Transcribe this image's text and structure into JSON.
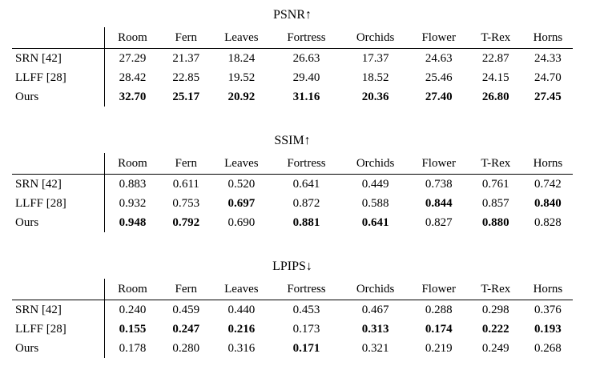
{
  "page": {
    "background": "#ffffff",
    "text_color": "#000000"
  },
  "tables": [
    {
      "title": "PSNR↑",
      "columns": [
        "Room",
        "Fern",
        "Leaves",
        "Fortress",
        "Orchids",
        "Flower",
        "T-Rex",
        "Horns"
      ],
      "rows": [
        {
          "method": "SRN",
          "cite": "[42]",
          "values": [
            "27.29",
            "21.37",
            "18.24",
            "26.63",
            "17.37",
            "24.63",
            "22.87",
            "24.33"
          ],
          "bold": [
            false,
            false,
            false,
            false,
            false,
            false,
            false,
            false
          ]
        },
        {
          "method": "LLFF",
          "cite": "[28]",
          "values": [
            "28.42",
            "22.85",
            "19.52",
            "29.40",
            "18.52",
            "25.46",
            "24.15",
            "24.70"
          ],
          "bold": [
            false,
            false,
            false,
            false,
            false,
            false,
            false,
            false
          ]
        },
        {
          "method": "Ours",
          "cite": "",
          "values": [
            "32.70",
            "25.17",
            "20.92",
            "31.16",
            "20.36",
            "27.40",
            "26.80",
            "27.45"
          ],
          "bold": [
            true,
            true,
            true,
            true,
            true,
            true,
            true,
            true
          ]
        }
      ]
    },
    {
      "title": "SSIM↑",
      "columns": [
        "Room",
        "Fern",
        "Leaves",
        "Fortress",
        "Orchids",
        "Flower",
        "T-Rex",
        "Horns"
      ],
      "rows": [
        {
          "method": "SRN",
          "cite": "[42]",
          "values": [
            "0.883",
            "0.611",
            "0.520",
            "0.641",
            "0.449",
            "0.738",
            "0.761",
            "0.742"
          ],
          "bold": [
            false,
            false,
            false,
            false,
            false,
            false,
            false,
            false
          ]
        },
        {
          "method": "LLFF",
          "cite": "[28]",
          "values": [
            "0.932",
            "0.753",
            "0.697",
            "0.872",
            "0.588",
            "0.844",
            "0.857",
            "0.840"
          ],
          "bold": [
            false,
            false,
            true,
            false,
            false,
            true,
            false,
            true
          ]
        },
        {
          "method": "Ours",
          "cite": "",
          "values": [
            "0.948",
            "0.792",
            "0.690",
            "0.881",
            "0.641",
            "0.827",
            "0.880",
            "0.828"
          ],
          "bold": [
            true,
            true,
            false,
            true,
            true,
            false,
            true,
            false
          ]
        }
      ]
    },
    {
      "title": "LPIPS↓",
      "columns": [
        "Room",
        "Fern",
        "Leaves",
        "Fortress",
        "Orchids",
        "Flower",
        "T-Rex",
        "Horns"
      ],
      "rows": [
        {
          "method": "SRN",
          "cite": "[42]",
          "values": [
            "0.240",
            "0.459",
            "0.440",
            "0.453",
            "0.467",
            "0.288",
            "0.298",
            "0.376"
          ],
          "bold": [
            false,
            false,
            false,
            false,
            false,
            false,
            false,
            false
          ]
        },
        {
          "method": "LLFF",
          "cite": "[28]",
          "values": [
            "0.155",
            "0.247",
            "0.216",
            "0.173",
            "0.313",
            "0.174",
            "0.222",
            "0.193"
          ],
          "bold": [
            true,
            true,
            true,
            false,
            true,
            true,
            true,
            true
          ]
        },
        {
          "method": "Ours",
          "cite": "",
          "values": [
            "0.178",
            "0.280",
            "0.316",
            "0.171",
            "0.321",
            "0.219",
            "0.249",
            "0.268"
          ],
          "bold": [
            false,
            false,
            false,
            true,
            false,
            false,
            false,
            false
          ]
        }
      ]
    }
  ]
}
